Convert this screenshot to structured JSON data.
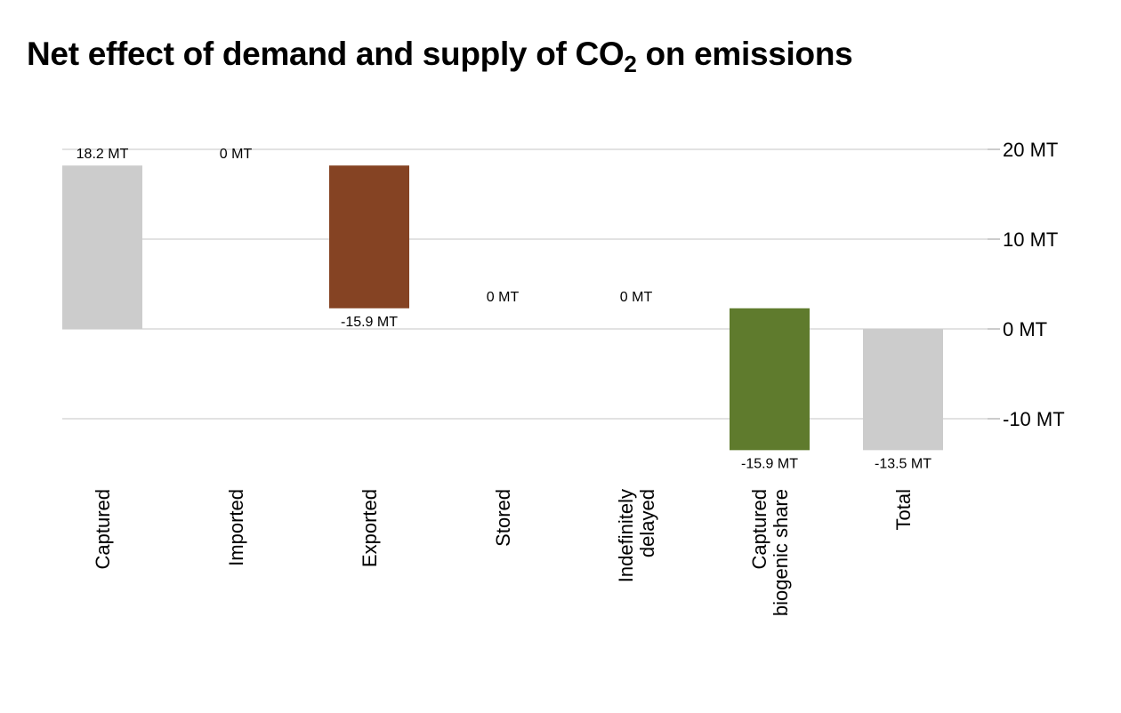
{
  "title": {
    "main": "Net effect of demand and supply of CO",
    "sub": "2",
    "tail": " on emissions"
  },
  "chart_data": {
    "type": "bar",
    "subtype": "waterfall",
    "title": "Net effect of demand and supply of CO2 on emissions",
    "unit": "MT",
    "ylim": [
      -13.5,
      20
    ],
    "yticks": [
      20,
      10,
      0,
      -10
    ],
    "ytick_labels": [
      "20 MT",
      "10 MT",
      "0 MT",
      "-10 MT"
    ],
    "grid": true,
    "legend": "none",
    "bars": [
      {
        "category": [
          "Captured"
        ],
        "start": 0,
        "end": 18.2,
        "label": "18.2 MT",
        "label_pos": "top",
        "color": "#cccccc"
      },
      {
        "category": [
          "Imported"
        ],
        "start": 18.2,
        "end": 18.2,
        "label": "0 MT",
        "label_pos": "top",
        "color": "#cccccc"
      },
      {
        "category": [
          "Exported"
        ],
        "start": 18.2,
        "end": 2.3,
        "label": "-15.9 MT",
        "label_pos": "bottom",
        "color": "#854323"
      },
      {
        "category": [
          "Stored"
        ],
        "start": 2.3,
        "end": 2.3,
        "label": "0 MT",
        "label_pos": "top",
        "color": "#cccccc"
      },
      {
        "category": [
          "Indefinitely",
          "delayed"
        ],
        "start": 2.3,
        "end": 2.3,
        "label": "0 MT",
        "label_pos": "top",
        "color": "#cccccc"
      },
      {
        "category": [
          "Captured",
          "biogenic share"
        ],
        "start": 2.3,
        "end": -13.5,
        "label": "-15.9 MT",
        "label_pos": "bottom",
        "color": "#5f7b2d"
      },
      {
        "category": [
          "Total"
        ],
        "start": 0,
        "end": -13.5,
        "label": "-13.5 MT",
        "label_pos": "bottom",
        "color": "#cccccc"
      }
    ]
  }
}
